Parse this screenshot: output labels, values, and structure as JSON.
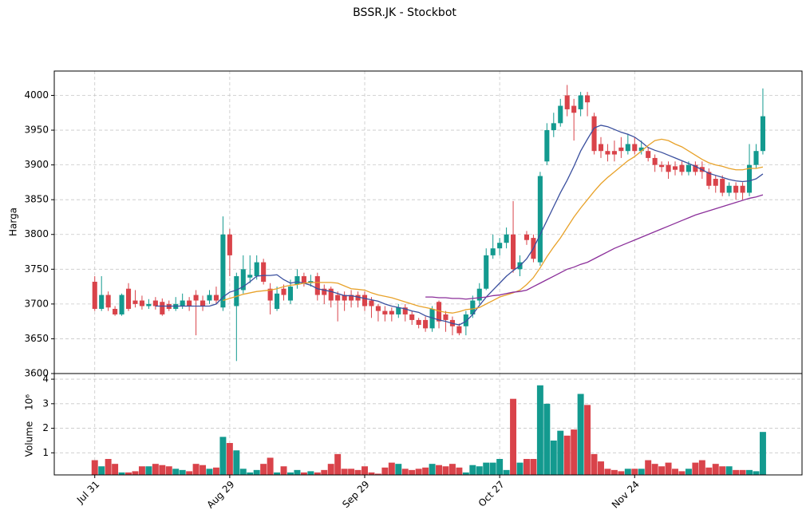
{
  "chart_data": {
    "type": "candlestick",
    "title": "BSSR.JK - Stockbot",
    "ylabel": "Harga",
    "grid": true,
    "up_color": "#139a8f",
    "down_color": "#d9434a",
    "xlim": [
      -6,
      104.8
    ],
    "xticks": [
      {
        "value": 0,
        "label": "Jul 31"
      },
      {
        "value": 20,
        "label": "Aug 29"
      },
      {
        "value": 40,
        "label": "Sep 29"
      },
      {
        "value": 60,
        "label": "Oct 27"
      },
      {
        "value": 80,
        "label": "Nov 24"
      }
    ],
    "ylim": [
      3600,
      4035
    ],
    "yticks": [
      3600,
      3650,
      3700,
      3750,
      3800,
      3850,
      3900,
      3950,
      4000
    ],
    "open": [
      3732,
      3693,
      3713,
      3693,
      3685,
      3722,
      3705,
      3705,
      3697,
      3705,
      3703,
      3700,
      3693,
      3697,
      3705,
      3713,
      3705,
      3705,
      3713,
      3695,
      3800,
      3697,
      3720,
      3738,
      3740,
      3760,
      3722,
      3693,
      3722,
      3705,
      3728,
      3740,
      3730,
      3740,
      3722,
      3722,
      3713,
      3713,
      3713,
      3713,
      3713,
      3705,
      3697,
      3690,
      3690,
      3685,
      3695,
      3685,
      3677,
      3677,
      3665,
      3703,
      3685,
      3677,
      3668,
      3668,
      3685,
      3705,
      3722,
      3770,
      3780,
      3788,
      3800,
      3750,
      3800,
      3795,
      3760,
      3905,
      3950,
      3960,
      4000,
      3985,
      3980,
      4000,
      3970,
      3930,
      3920,
      3920,
      3925,
      3920,
      3930,
      3920,
      3920,
      3910,
      3900,
      3900,
      3898,
      3900,
      3890,
      3900,
      3897,
      3890,
      3880,
      3880,
      3860,
      3870,
      3870,
      3860,
      3900,
      3920
    ],
    "high": [
      3740,
      3740,
      3718,
      3697,
      3715,
      3730,
      3720,
      3712,
      3707,
      3710,
      3708,
      3705,
      3710,
      3715,
      3710,
      3720,
      3712,
      3720,
      3725,
      3826,
      3808,
      3745,
      3770,
      3770,
      3770,
      3765,
      3730,
      3725,
      3728,
      3735,
      3750,
      3745,
      3742,
      3745,
      3728,
      3725,
      3718,
      3718,
      3720,
      3718,
      3718,
      3710,
      3700,
      3697,
      3695,
      3700,
      3700,
      3690,
      3680,
      3682,
      3697,
      3705,
      3690,
      3682,
      3672,
      3690,
      3712,
      3730,
      3780,
      3800,
      3795,
      3810,
      3848,
      3770,
      3805,
      3800,
      3890,
      3960,
      3975,
      3995,
      4015,
      3995,
      4005,
      4005,
      3975,
      3940,
      3930,
      3935,
      3940,
      3945,
      3940,
      3935,
      3925,
      3915,
      3905,
      3905,
      3905,
      3905,
      3905,
      3905,
      3905,
      3895,
      3885,
      3885,
      3875,
      3875,
      3875,
      3930,
      3930,
      4010
    ],
    "low": [
      3690,
      3690,
      3690,
      3683,
      3683,
      3690,
      3695,
      3692,
      3693,
      3692,
      3683,
      3690,
      3690,
      3693,
      3690,
      3655,
      3690,
      3700,
      3700,
      3690,
      3740,
      3618,
      3715,
      3730,
      3735,
      3728,
      3685,
      3690,
      3705,
      3700,
      3722,
      3725,
      3725,
      3705,
      3700,
      3695,
      3675,
      3690,
      3695,
      3695,
      3690,
      3680,
      3675,
      3675,
      3675,
      3680,
      3675,
      3670,
      3665,
      3660,
      3660,
      3665,
      3660,
      3655,
      3655,
      3655,
      3680,
      3700,
      3720,
      3765,
      3770,
      3780,
      3745,
      3740,
      3785,
      3760,
      3755,
      3900,
      3940,
      3955,
      3970,
      3935,
      3970,
      3970,
      3915,
      3910,
      3905,
      3905,
      3910,
      3915,
      3915,
      3915,
      3905,
      3890,
      3890,
      3880,
      3885,
      3885,
      3885,
      3885,
      3880,
      3865,
      3860,
      3855,
      3855,
      3850,
      3850,
      3855,
      3895,
      3915
    ],
    "close": [
      3693,
      3713,
      3695,
      3685,
      3713,
      3693,
      3700,
      3697,
      3700,
      3697,
      3685,
      3693,
      3700,
      3705,
      3697,
      3705,
      3697,
      3713,
      3705,
      3800,
      3770,
      3740,
      3750,
      3742,
      3760,
      3732,
      3705,
      3715,
      3713,
      3725,
      3740,
      3730,
      3733,
      3713,
      3713,
      3705,
      3705,
      3705,
      3705,
      3705,
      3697,
      3697,
      3690,
      3685,
      3685,
      3695,
      3685,
      3677,
      3670,
      3665,
      3693,
      3675,
      3677,
      3668,
      3658,
      3685,
      3705,
      3722,
      3770,
      3780,
      3788,
      3800,
      3750,
      3760,
      3792,
      3765,
      3884,
      3950,
      3960,
      3985,
      3980,
      3975,
      4000,
      3990,
      3920,
      3920,
      3915,
      3915,
      3920,
      3930,
      3920,
      3925,
      3910,
      3900,
      3897,
      3890,
      3893,
      3890,
      3900,
      3890,
      3890,
      3870,
      3870,
      3860,
      3870,
      3860,
      3860,
      3900,
      3920,
      3970
    ],
    "series": [
      {
        "color": "#3a4f9e",
        "values": [
          null,
          null,
          null,
          null,
          null,
          null,
          null,
          null,
          null,
          3697,
          3697,
          3697,
          3697,
          3697,
          3697,
          3697,
          3697,
          3697,
          3700,
          3710,
          3717,
          3720,
          3725,
          3732,
          3740,
          3741,
          3741,
          3742,
          3735,
          3730,
          3732,
          3730,
          3727,
          3722,
          3720,
          3718,
          3715,
          3712,
          3712,
          3710,
          3708,
          3706,
          3704,
          3700,
          3697,
          3695,
          3693,
          3690,
          3688,
          3683,
          3680,
          3677,
          3675,
          3672,
          3670,
          3675,
          3685,
          3698,
          3710,
          3720,
          3730,
          3740,
          3748,
          3755,
          3765,
          3780,
          3800,
          3820,
          3840,
          3860,
          3878,
          3898,
          3920,
          3937,
          3953,
          3957,
          3955,
          3951,
          3947,
          3944,
          3940,
          3933,
          3925,
          3921,
          3918,
          3914,
          3910,
          3906,
          3902,
          3898,
          3893,
          3888,
          3885,
          3882,
          3879,
          3877,
          3876,
          3877,
          3880,
          3887
        ]
      },
      {
        "color": "#e8a22a",
        "values": [
          null,
          null,
          null,
          null,
          null,
          null,
          null,
          null,
          null,
          null,
          null,
          null,
          null,
          null,
          null,
          null,
          null,
          null,
          null,
          3705,
          3708,
          3711,
          3714,
          3716,
          3718,
          3719,
          3720,
          3722,
          3725,
          3727,
          3728,
          3730,
          3731,
          3731,
          3731,
          3731,
          3730,
          3726,
          3722,
          3721,
          3720,
          3716,
          3713,
          3711,
          3709,
          3706,
          3703,
          3700,
          3697,
          3695,
          3693,
          3690,
          3688,
          3687,
          3689,
          3692,
          3693,
          3695,
          3700,
          3705,
          3710,
          3713,
          3716,
          3720,
          3728,
          3738,
          3752,
          3768,
          3782,
          3795,
          3810,
          3825,
          3838,
          3850,
          3862,
          3873,
          3882,
          3890,
          3898,
          3906,
          3912,
          3920,
          3928,
          3935,
          3937,
          3935,
          3930,
          3926,
          3920,
          3914,
          3908,
          3903,
          3900,
          3898,
          3895,
          3893,
          3893,
          3895,
          3895,
          3897
        ]
      },
      {
        "color": "#8b2f9a",
        "values": [
          null,
          null,
          null,
          null,
          null,
          null,
          null,
          null,
          null,
          null,
          null,
          null,
          null,
          null,
          null,
          null,
          null,
          null,
          null,
          null,
          null,
          null,
          null,
          null,
          null,
          null,
          null,
          null,
          null,
          null,
          null,
          null,
          null,
          null,
          null,
          null,
          null,
          null,
          null,
          null,
          null,
          null,
          null,
          null,
          null,
          null,
          null,
          null,
          null,
          3710,
          3710,
          3709,
          3709,
          3708,
          3708,
          3707,
          3708,
          3709,
          3710,
          3712,
          3713,
          3715,
          3717,
          3718,
          3720,
          3725,
          3730,
          3735,
          3740,
          3745,
          3750,
          3753,
          3757,
          3760,
          3765,
          3770,
          3775,
          3780,
          3784,
          3788,
          3792,
          3796,
          3800,
          3804,
          3808,
          3812,
          3816,
          3820,
          3824,
          3828,
          3831,
          3834,
          3837,
          3840,
          3843,
          3846,
          3849,
          3852,
          3854,
          3857
        ]
      }
    ],
    "volume": {
      "ylabel": "Volume",
      "scale_label": "10⁶",
      "ylim": [
        0.1,
        4.23
      ],
      "yticks": [
        1,
        2,
        3,
        4
      ],
      "values": [
        0.7,
        0.45,
        0.75,
        0.55,
        0.2,
        0.2,
        0.25,
        0.45,
        0.45,
        0.55,
        0.5,
        0.45,
        0.35,
        0.3,
        0.25,
        0.55,
        0.5,
        0.35,
        0.4,
        1.65,
        1.4,
        1.1,
        0.35,
        0.2,
        0.3,
        0.55,
        0.8,
        0.2,
        0.45,
        0.2,
        0.3,
        0.2,
        0.25,
        0.2,
        0.3,
        0.55,
        0.95,
        0.35,
        0.35,
        0.3,
        0.45,
        0.2,
        0.15,
        0.4,
        0.6,
        0.55,
        0.35,
        0.3,
        0.35,
        0.4,
        0.55,
        0.5,
        0.45,
        0.55,
        0.4,
        0.2,
        0.5,
        0.45,
        0.6,
        0.6,
        0.75,
        0.3,
        3.2,
        0.6,
        0.75,
        0.75,
        3.75,
        3.0,
        1.5,
        1.9,
        1.7,
        1.95,
        3.4,
        2.95,
        0.95,
        0.65,
        0.35,
        0.3,
        0.25,
        0.35,
        0.35,
        0.35,
        0.7,
        0.55,
        0.45,
        0.6,
        0.35,
        0.25,
        0.35,
        0.6,
        0.7,
        0.4,
        0.55,
        0.45,
        0.45,
        0.3,
        0.3,
        0.3,
        0.25,
        1.85
      ]
    }
  }
}
